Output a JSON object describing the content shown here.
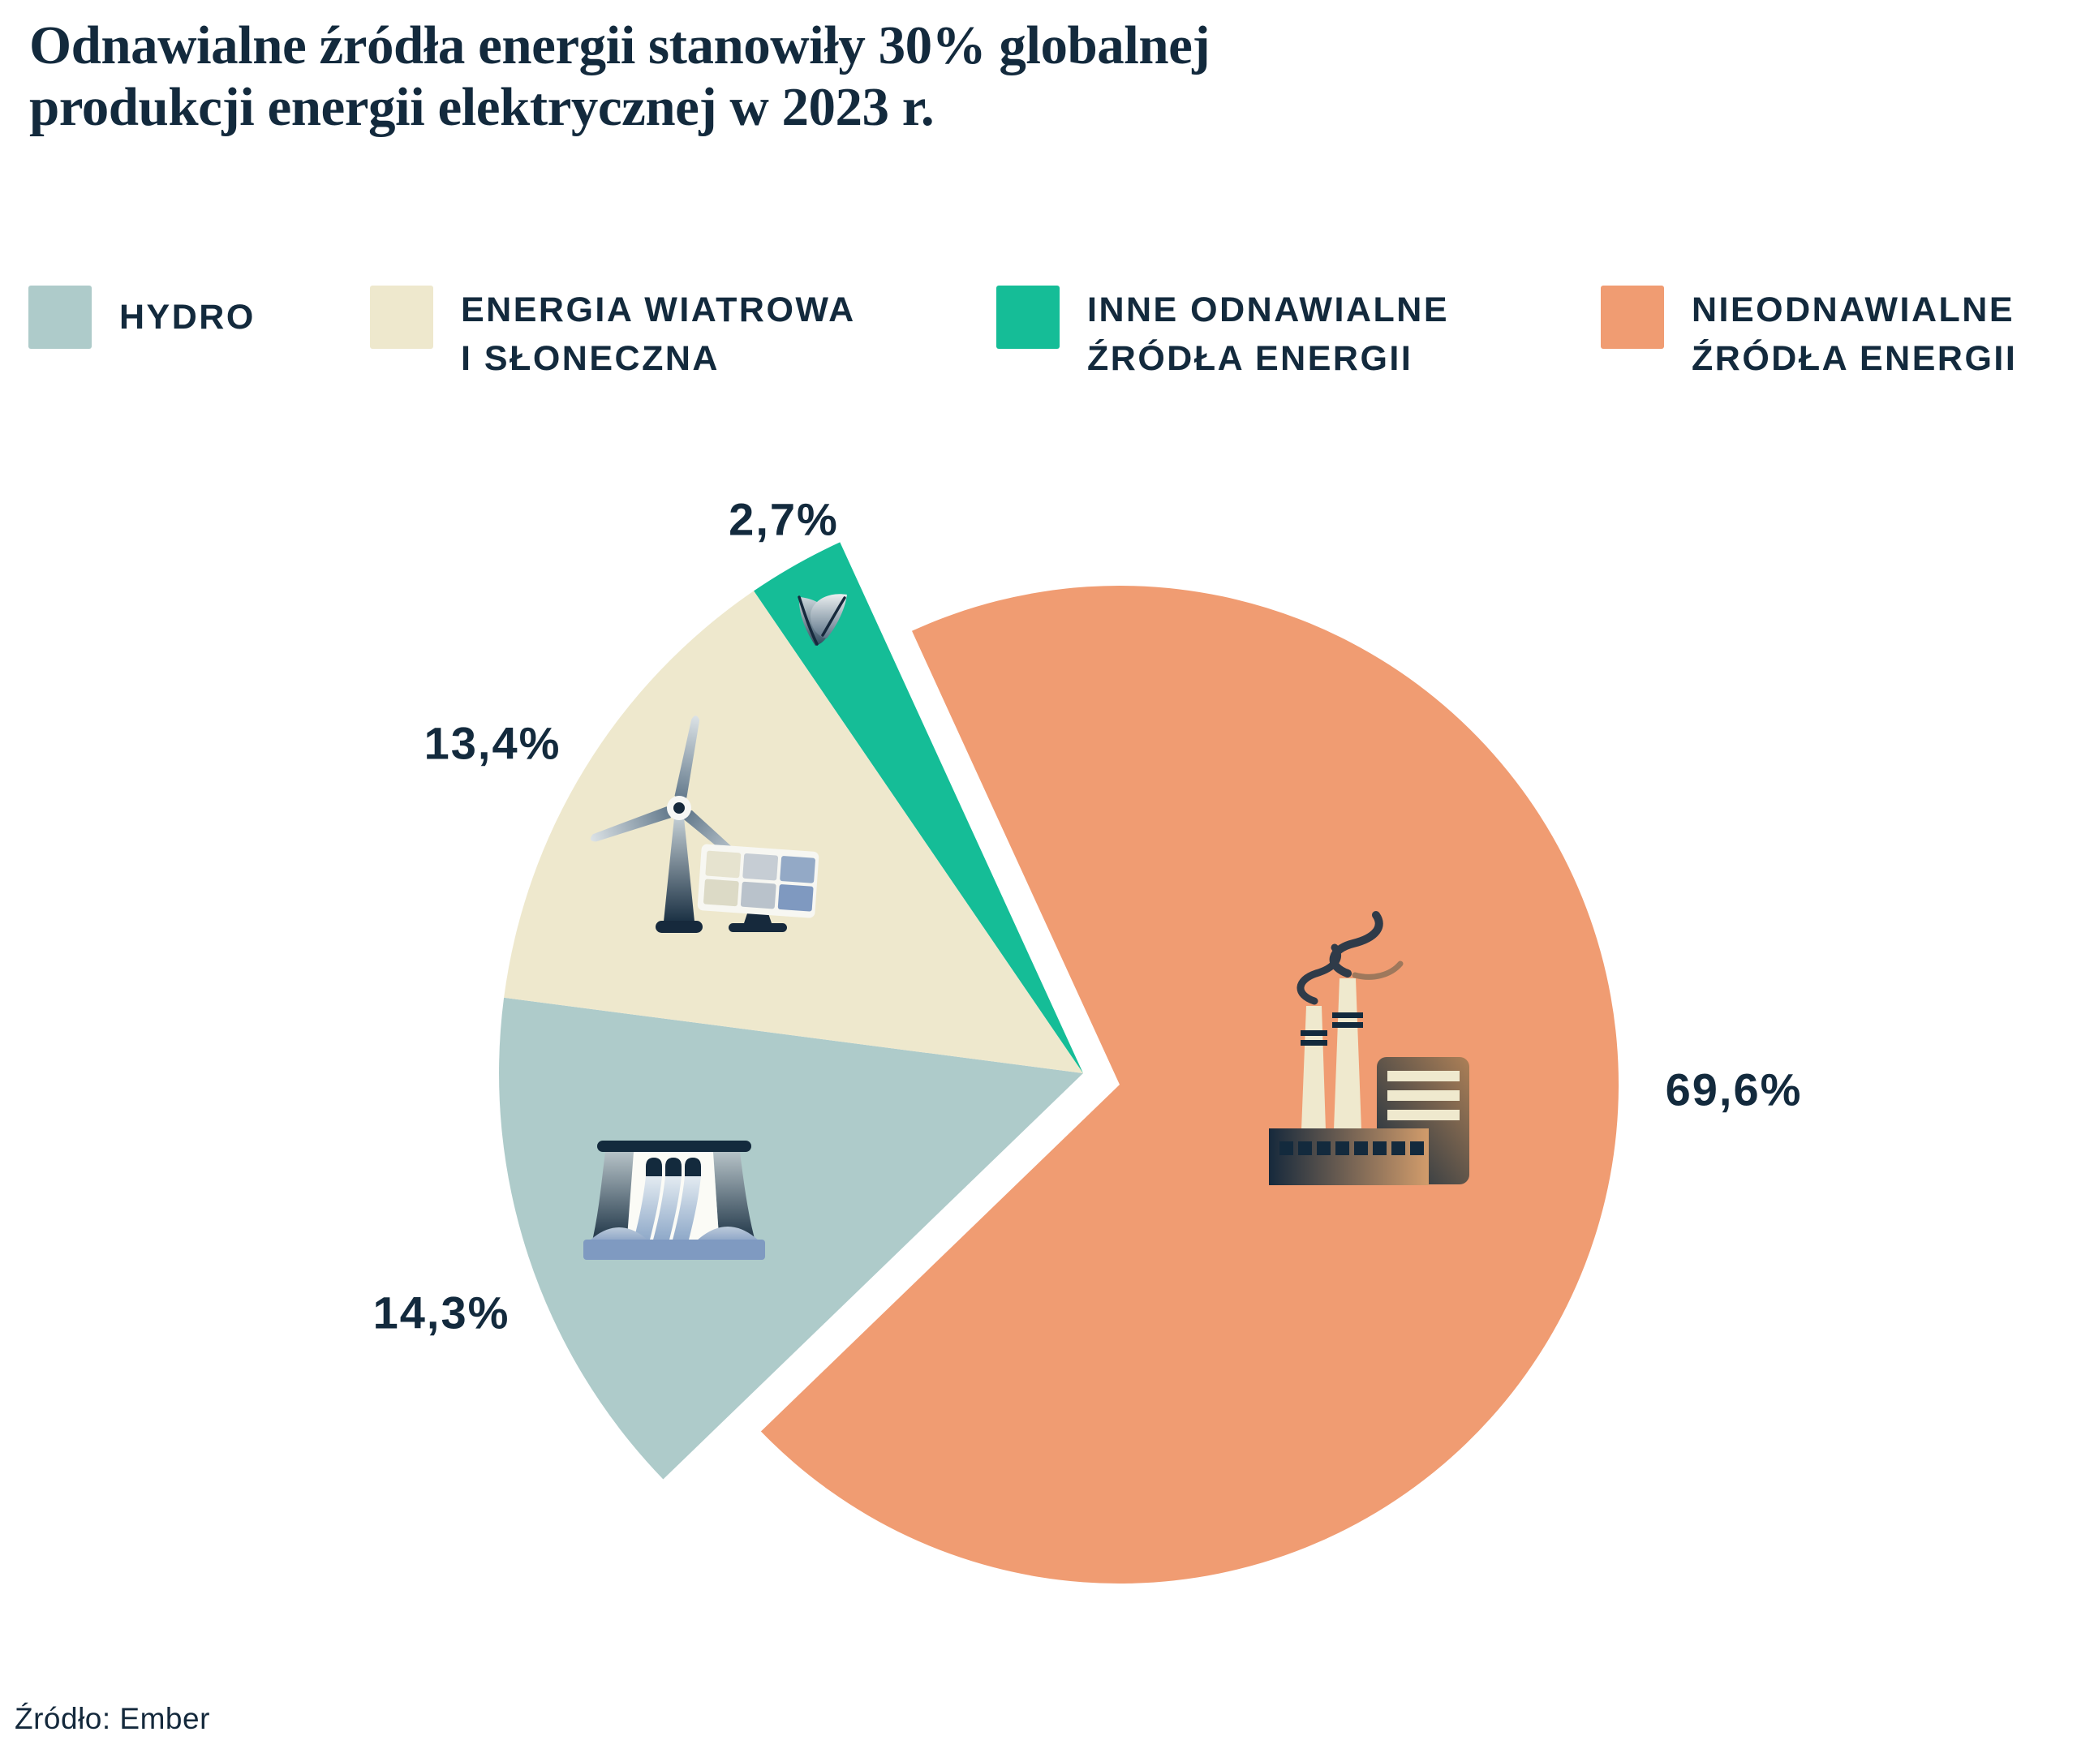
{
  "title": {
    "line1": "Odnawialne źródła energii stanowiły 30% globalnej",
    "line2": "produkcji energii elektrycznej w 2023 r."
  },
  "legend": {
    "items": [
      {
        "key": "hydro",
        "line1": "HYDRO",
        "line2": "",
        "color": "#AECBCA"
      },
      {
        "key": "wind_solar",
        "line1": "ENERGIA WIATROWA",
        "line2": "I SŁONECZNA",
        "color": "#EEE8CD"
      },
      {
        "key": "other_renewables",
        "line1": "INNE ODNAWIALNE",
        "line2": "ŹRÓDŁA ENERGII",
        "color": "#15BD97"
      },
      {
        "key": "non_renewables",
        "line1": "NIEODNAWIALNE",
        "line2": "ŹRÓDŁA ENERGII",
        "color": "#F09C72"
      }
    ]
  },
  "source": {
    "text": "Źródło: Ember"
  },
  "colors": {
    "navy": "#132A3D",
    "background": "#FFFFFF"
  },
  "chart_data": {
    "type": "pie",
    "unit": "%",
    "decimal_separator": ",",
    "title": "Odnawialne źródła energii stanowiły 30% globalnej produkcji energii elektrycznej w 2023 r.",
    "source": "Ember",
    "legend_position": "top",
    "renewables_total_pct": 30.4,
    "style": "renewable slices exploded to upper-left with larger radius; non-renewable slice separated by white gap",
    "slices": [
      {
        "key": "hydro",
        "label": "Hydro",
        "value": 14.3,
        "display": "14,3%",
        "color": "#AECBCA",
        "icon": "dam-icon"
      },
      {
        "key": "wind_solar",
        "label": "Energia wiatrowa i słoneczna",
        "value": 13.4,
        "display": "13,4%",
        "color": "#EEE8CD",
        "icon": "wind-turbine-solar-panel-icon"
      },
      {
        "key": "other_renewables",
        "label": "Inne odnawialne źródła energii",
        "value": 2.7,
        "display": "2,7%",
        "color": "#15BD97",
        "icon": "leaf-icon"
      },
      {
        "key": "non_renewables",
        "label": "Nieodnawialne źródła energii",
        "value": 69.6,
        "display": "69,6%",
        "color": "#F09C72",
        "icon": "factory-icon"
      }
    ]
  }
}
